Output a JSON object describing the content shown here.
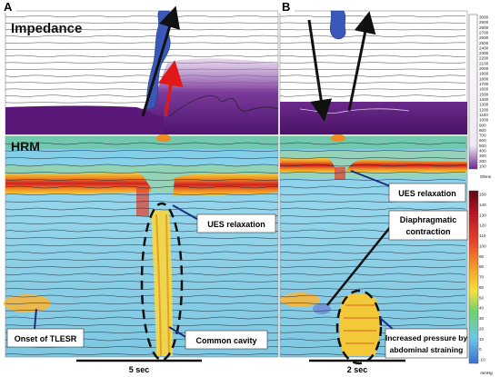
{
  "panels": {
    "a": {
      "letter": "A",
      "impedance_label": "Impedance",
      "hrm_label": "HRM",
      "callouts": {
        "ues_relaxation": "UES relaxation",
        "onset_tlesr": "Onset of TLESR",
        "common_cavity": "Common cavity"
      },
      "timebar_label": "5 sec"
    },
    "b": {
      "letter": "B",
      "callouts": {
        "ues_relaxation": "UES relaxation",
        "diaphragmatic_line1": "Diaphragmatic",
        "diaphragmatic_line2": "contraction",
        "abdominal_line1": "Increased pressure by",
        "abdominal_line2": "abdominal straining"
      },
      "timebar_label": "2 sec"
    }
  },
  "impedance_scale": {
    "ticks": [
      "3000",
      "2900",
      "2800",
      "2700",
      "2600",
      "2500",
      "2400",
      "2300",
      "2200",
      "2100",
      "2000",
      "1900",
      "1800",
      "1700",
      "1600",
      "1500",
      "1400",
      "1300",
      "1200",
      "1100",
      "1000",
      "900",
      "800",
      "700",
      "600",
      "500",
      "400",
      "300",
      "200",
      "100"
    ],
    "unit": "Ohms"
  },
  "pressure_scale": {
    "ticks": [
      "150",
      "140",
      "130",
      "120",
      "110",
      "100",
      "90",
      "80",
      "70",
      "60",
      "50",
      "40",
      "30",
      "20",
      "10",
      "0",
      "-10"
    ],
    "unit": "mmHg"
  },
  "colors": {
    "impedance_purple": "#5a1878",
    "bolus_blue": "#3a58b8",
    "hrm_background": "#8fd2ea",
    "ues_red": "#d8242a",
    "arrow_red": "#e01818"
  }
}
